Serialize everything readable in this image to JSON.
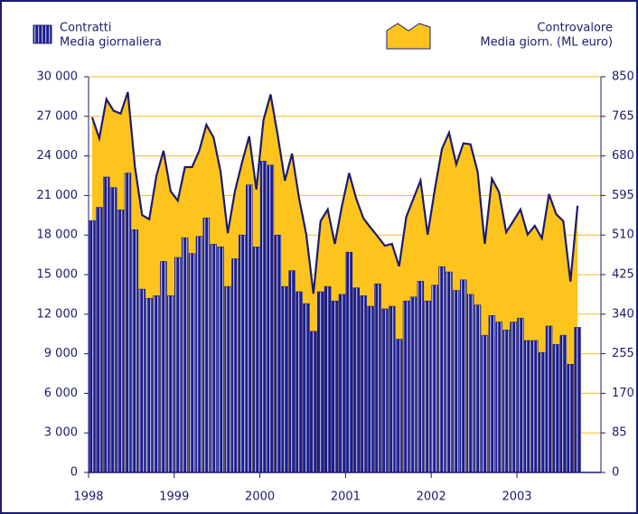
{
  "chart_data": {
    "type": "bar_area",
    "categories": [
      "1998",
      null,
      null,
      null,
      null,
      null,
      null,
      null,
      null,
      null,
      null,
      null,
      "1999",
      null,
      null,
      null,
      null,
      null,
      null,
      null,
      null,
      null,
      null,
      null,
      "2000",
      null,
      null,
      null,
      null,
      null,
      null,
      null,
      null,
      null,
      null,
      null,
      "2001",
      null,
      null,
      null,
      null,
      null,
      null,
      null,
      null,
      null,
      null,
      null,
      "2002",
      null,
      null,
      null,
      null,
      null,
      null,
      null,
      null,
      null,
      null,
      null,
      "2003",
      null,
      null,
      null,
      null,
      null,
      null,
      null,
      null
    ],
    "series": [
      {
        "name": "Contratti",
        "name_line2": "Media giornaliera",
        "type": "bar",
        "color": "#1c1c8c",
        "stripe_color": "#a8b0dc",
        "axis": "y",
        "values": [
          19100,
          20100,
          22400,
          21600,
          19900,
          22700,
          18400,
          13900,
          13200,
          13400,
          16000,
          13400,
          16300,
          17800,
          16600,
          17900,
          19300,
          17300,
          17100,
          14100,
          16200,
          18000,
          21800,
          17100,
          23600,
          23300,
          18000,
          14100,
          15300,
          13700,
          12800,
          10700,
          13700,
          14100,
          13000,
          13500,
          16700,
          14000,
          13400,
          12600,
          14300,
          12400,
          12600,
          10100,
          13000,
          13300,
          14500,
          13000,
          14200,
          15600,
          15200,
          13800,
          14600,
          13500,
          12700,
          10400,
          11900,
          11400,
          10800,
          11400,
          11700,
          10000,
          10000,
          9100,
          11100,
          9700,
          10400,
          8200,
          11000
        ]
      },
      {
        "name": "Controvalore",
        "name_line2": "Media giorn. (ML euro)",
        "type": "area",
        "color": "#fcc41c",
        "line_color": "#1c1c6e",
        "axis": "y2",
        "values": [
          763,
          718,
          802,
          777,
          771,
          817,
          656,
          553,
          544,
          637,
          691,
          604,
          584,
          656,
          656,
          691,
          747,
          720,
          646,
          514,
          604,
          666,
          722,
          608,
          757,
          812,
          724,
          627,
          685,
          588,
          511,
          384,
          540,
          565,
          491,
          573,
          643,
          588,
          546,
          526,
          507,
          487,
          491,
          443,
          549,
          588,
          627,
          511,
          608,
          695,
          730,
          662,
          707,
          705,
          646,
          491,
          631,
          602,
          516,
          540,
          565,
          511,
          530,
          503,
          598,
          555,
          540,
          410,
          573
        ]
      }
    ],
    "ylim": [
      0,
      30000
    ],
    "yticks": [
      0,
      {
        "value": 3000,
        "label": "3 000"
      },
      {
        "value": 6000,
        "label": "6 000"
      },
      {
        "value": 9000,
        "label": "9 000"
      },
      {
        "value": 12000,
        "label": "12 000"
      },
      {
        "value": 15000,
        "label": "15 000"
      },
      {
        "value": 18000,
        "label": "18 000"
      },
      {
        "value": 21000,
        "label": "21 000"
      },
      {
        "value": 24000,
        "label": "24 000"
      },
      {
        "value": 27000,
        "label": "27 000"
      },
      {
        "value": 30000,
        "label": "30 000"
      }
    ],
    "y2lim": [
      0,
      850
    ],
    "y2ticks": [
      0,
      85,
      170,
      255,
      340,
      425,
      510,
      595,
      680,
      765,
      850
    ],
    "grid": true,
    "grid_color": "#f0c020"
  }
}
